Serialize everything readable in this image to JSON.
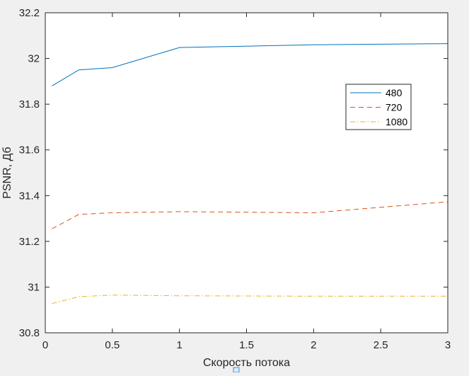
{
  "chart_data": {
    "type": "line",
    "title": "",
    "xlabel": "Скорость потока",
    "ylabel": "PSNR, Дб",
    "xlim": [
      0,
      3
    ],
    "ylim": [
      30.8,
      32.2
    ],
    "xticks": [
      0,
      0.5,
      1,
      1.5,
      2,
      2.5,
      3
    ],
    "xtick_labels": [
      "0",
      "0.5",
      "1",
      "1.5",
      "2",
      "2.5",
      "3"
    ],
    "yticks": [
      30.8,
      31,
      31.2,
      31.4,
      31.6,
      31.8,
      32,
      32.2
    ],
    "ytick_labels": [
      "30.8",
      "31",
      "31.2",
      "31.4",
      "31.6",
      "31.8",
      "32",
      "32.2"
    ],
    "grid": false,
    "legend_position": "top-right",
    "series": [
      {
        "name": "480",
        "color": "#0072bd",
        "dash": "solid",
        "x": [
          0.05,
          0.25,
          0.5,
          1,
          2,
          3
        ],
        "y": [
          31.88,
          31.95,
          31.96,
          32.048,
          32.06,
          32.065
        ]
      },
      {
        "name": "720",
        "color": "#d95319",
        "dash": "dashed",
        "x": [
          0.05,
          0.25,
          0.5,
          1,
          2,
          3
        ],
        "y": [
          31.255,
          31.318,
          31.325,
          31.33,
          31.325,
          31.373
        ]
      },
      {
        "name": "1080",
        "color": "#edb120",
        "dash": "dashdot",
        "x": [
          0.05,
          0.25,
          0.5,
          1,
          2,
          3
        ],
        "y": [
          30.928,
          30.958,
          30.965,
          30.962,
          30.96,
          30.96
        ]
      }
    ]
  }
}
